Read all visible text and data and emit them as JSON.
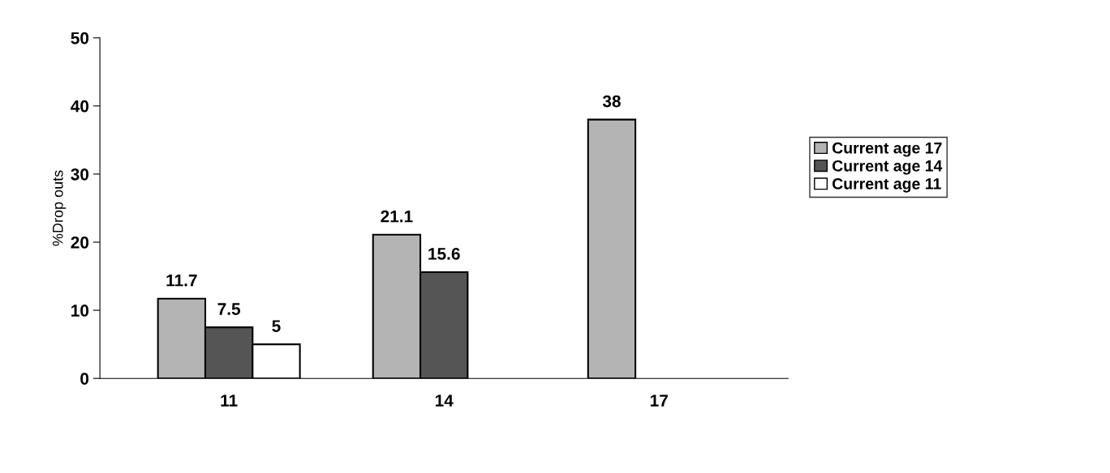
{
  "chart_data": {
    "type": "bar",
    "ylabel": "%Drop outs",
    "categories": [
      "11",
      "14",
      "17"
    ],
    "series": [
      {
        "name": "Current age 17",
        "color": "#b4b4b4",
        "values": [
          11.7,
          21.1,
          38
        ]
      },
      {
        "name": "Current age 14",
        "color": "#555555",
        "values": [
          7.5,
          15.6,
          null
        ]
      },
      {
        "name": "Current age 11",
        "color": "#ffffff",
        "values": [
          5,
          null,
          null
        ]
      }
    ],
    "ylim": [
      0,
      50
    ],
    "yticks": [
      0,
      10,
      20,
      30,
      40,
      50
    ],
    "grid": false,
    "legend": "right",
    "data_labels": true
  }
}
